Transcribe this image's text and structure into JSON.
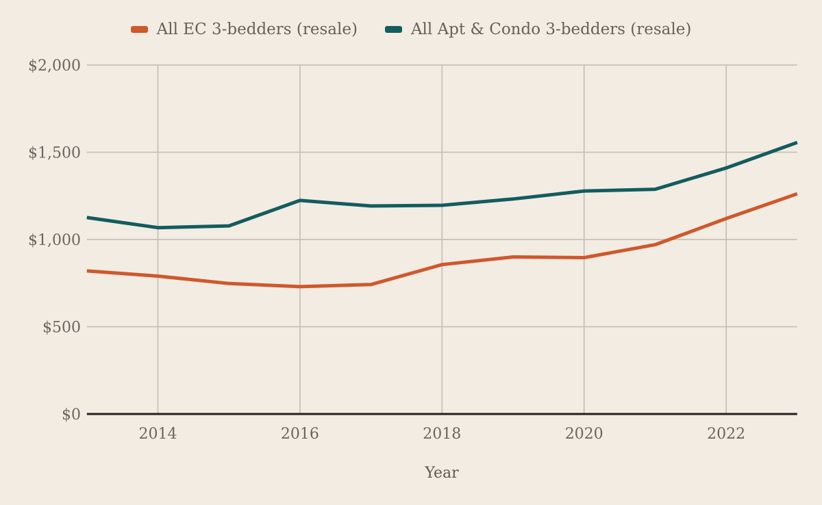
{
  "legend": {
    "items": [
      {
        "label": "All EC 3-bedders (resale)",
        "color": "#cf582c"
      },
      {
        "label": "All Apt & Condo 3-bedders (resale)",
        "color": "#135c5f"
      }
    ]
  },
  "chart_data": {
    "type": "line",
    "title": "",
    "xlabel": "Year",
    "ylabel": "",
    "xlim": [
      2013,
      2023
    ],
    "ylim": [
      0,
      2000
    ],
    "grid": true,
    "legend_position": "top",
    "x": [
      2013,
      2014,
      2015,
      2016,
      2017,
      2018,
      2019,
      2020,
      2021,
      2022,
      2023
    ],
    "series": [
      {
        "name": "All EC 3-bedders (resale)",
        "color": "#cf582c",
        "values": [
          820,
          790,
          748,
          730,
          742,
          856,
          900,
          896,
          970,
          1120,
          1262
        ]
      },
      {
        "name": "All Apt & Condo 3-bedders (resale)",
        "color": "#135c5f",
        "values": [
          1126,
          1068,
          1078,
          1224,
          1192,
          1196,
          1232,
          1278,
          1288,
          1410,
          1556
        ]
      }
    ],
    "y_ticks": [
      {
        "value": 0,
        "label": "$0"
      },
      {
        "value": 500,
        "label": "$500"
      },
      {
        "value": 1000,
        "label": "$1,000"
      },
      {
        "value": 1500,
        "label": "$1,500"
      },
      {
        "value": 2000,
        "label": "$2,000"
      }
    ],
    "x_ticks": [
      {
        "value": 2014,
        "label": "2014"
      },
      {
        "value": 2016,
        "label": "2016"
      },
      {
        "value": 2018,
        "label": "2018"
      },
      {
        "value": 2020,
        "label": "2020"
      },
      {
        "value": 2022,
        "label": "2022"
      }
    ]
  }
}
